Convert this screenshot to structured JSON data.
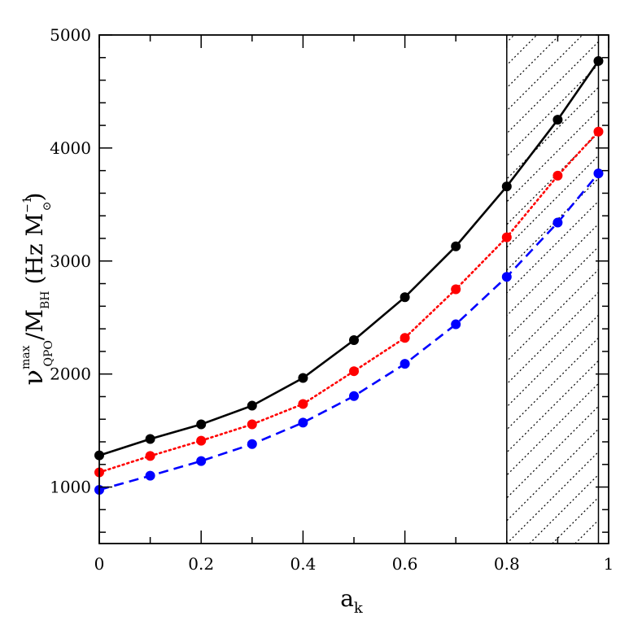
{
  "chart_data": {
    "type": "line",
    "xlabel": {
      "base": "a",
      "sub": "k"
    },
    "ylabel": {
      "nu": "ν",
      "sup": "max",
      "sub": "QPO",
      "mid": "/M",
      "mid_sub": "BH",
      "unit_open": "(Hz  M",
      "unit_sup": "−1",
      "unit_sub": "⊙",
      "unit_close": ")"
    },
    "xlim": [
      0,
      1.0
    ],
    "ylim": [
      500,
      5000
    ],
    "xticks": [
      0,
      0.2,
      0.4,
      0.6,
      0.8,
      1
    ],
    "xtick_labels": [
      "0",
      "0.2",
      "0.4",
      "0.6",
      "0.8",
      "1"
    ],
    "xminor_step": 0.1,
    "yticks": [
      1000,
      2000,
      3000,
      4000,
      5000
    ],
    "ytick_labels": [
      "1000",
      "2000",
      "3000",
      "4000",
      "5000"
    ],
    "yminor_step": 200,
    "grid": false,
    "shaded_region": {
      "x0": 0.8,
      "x1": 0.98,
      "pattern": "diagonal-dotted-hatch"
    },
    "x": [
      0,
      0.1,
      0.2,
      0.3,
      0.4,
      0.5,
      0.6,
      0.7,
      0.8,
      0.9,
      0.98
    ],
    "series": [
      {
        "color": "#000000",
        "style": "solid",
        "values": [
          1280,
          1425,
          1555,
          1720,
          1965,
          2300,
          2680,
          3130,
          3660,
          4250,
          4770
        ]
      },
      {
        "color": "#ff0000",
        "style": "dotted",
        "values": [
          1130,
          1275,
          1410,
          1555,
          1735,
          2025,
          2320,
          2750,
          3210,
          3755,
          4145
        ]
      },
      {
        "color": "#0000ff",
        "style": "dashed",
        "values": [
          975,
          1100,
          1230,
          1380,
          1570,
          1805,
          2090,
          2440,
          2860,
          3340,
          3775
        ]
      }
    ]
  }
}
